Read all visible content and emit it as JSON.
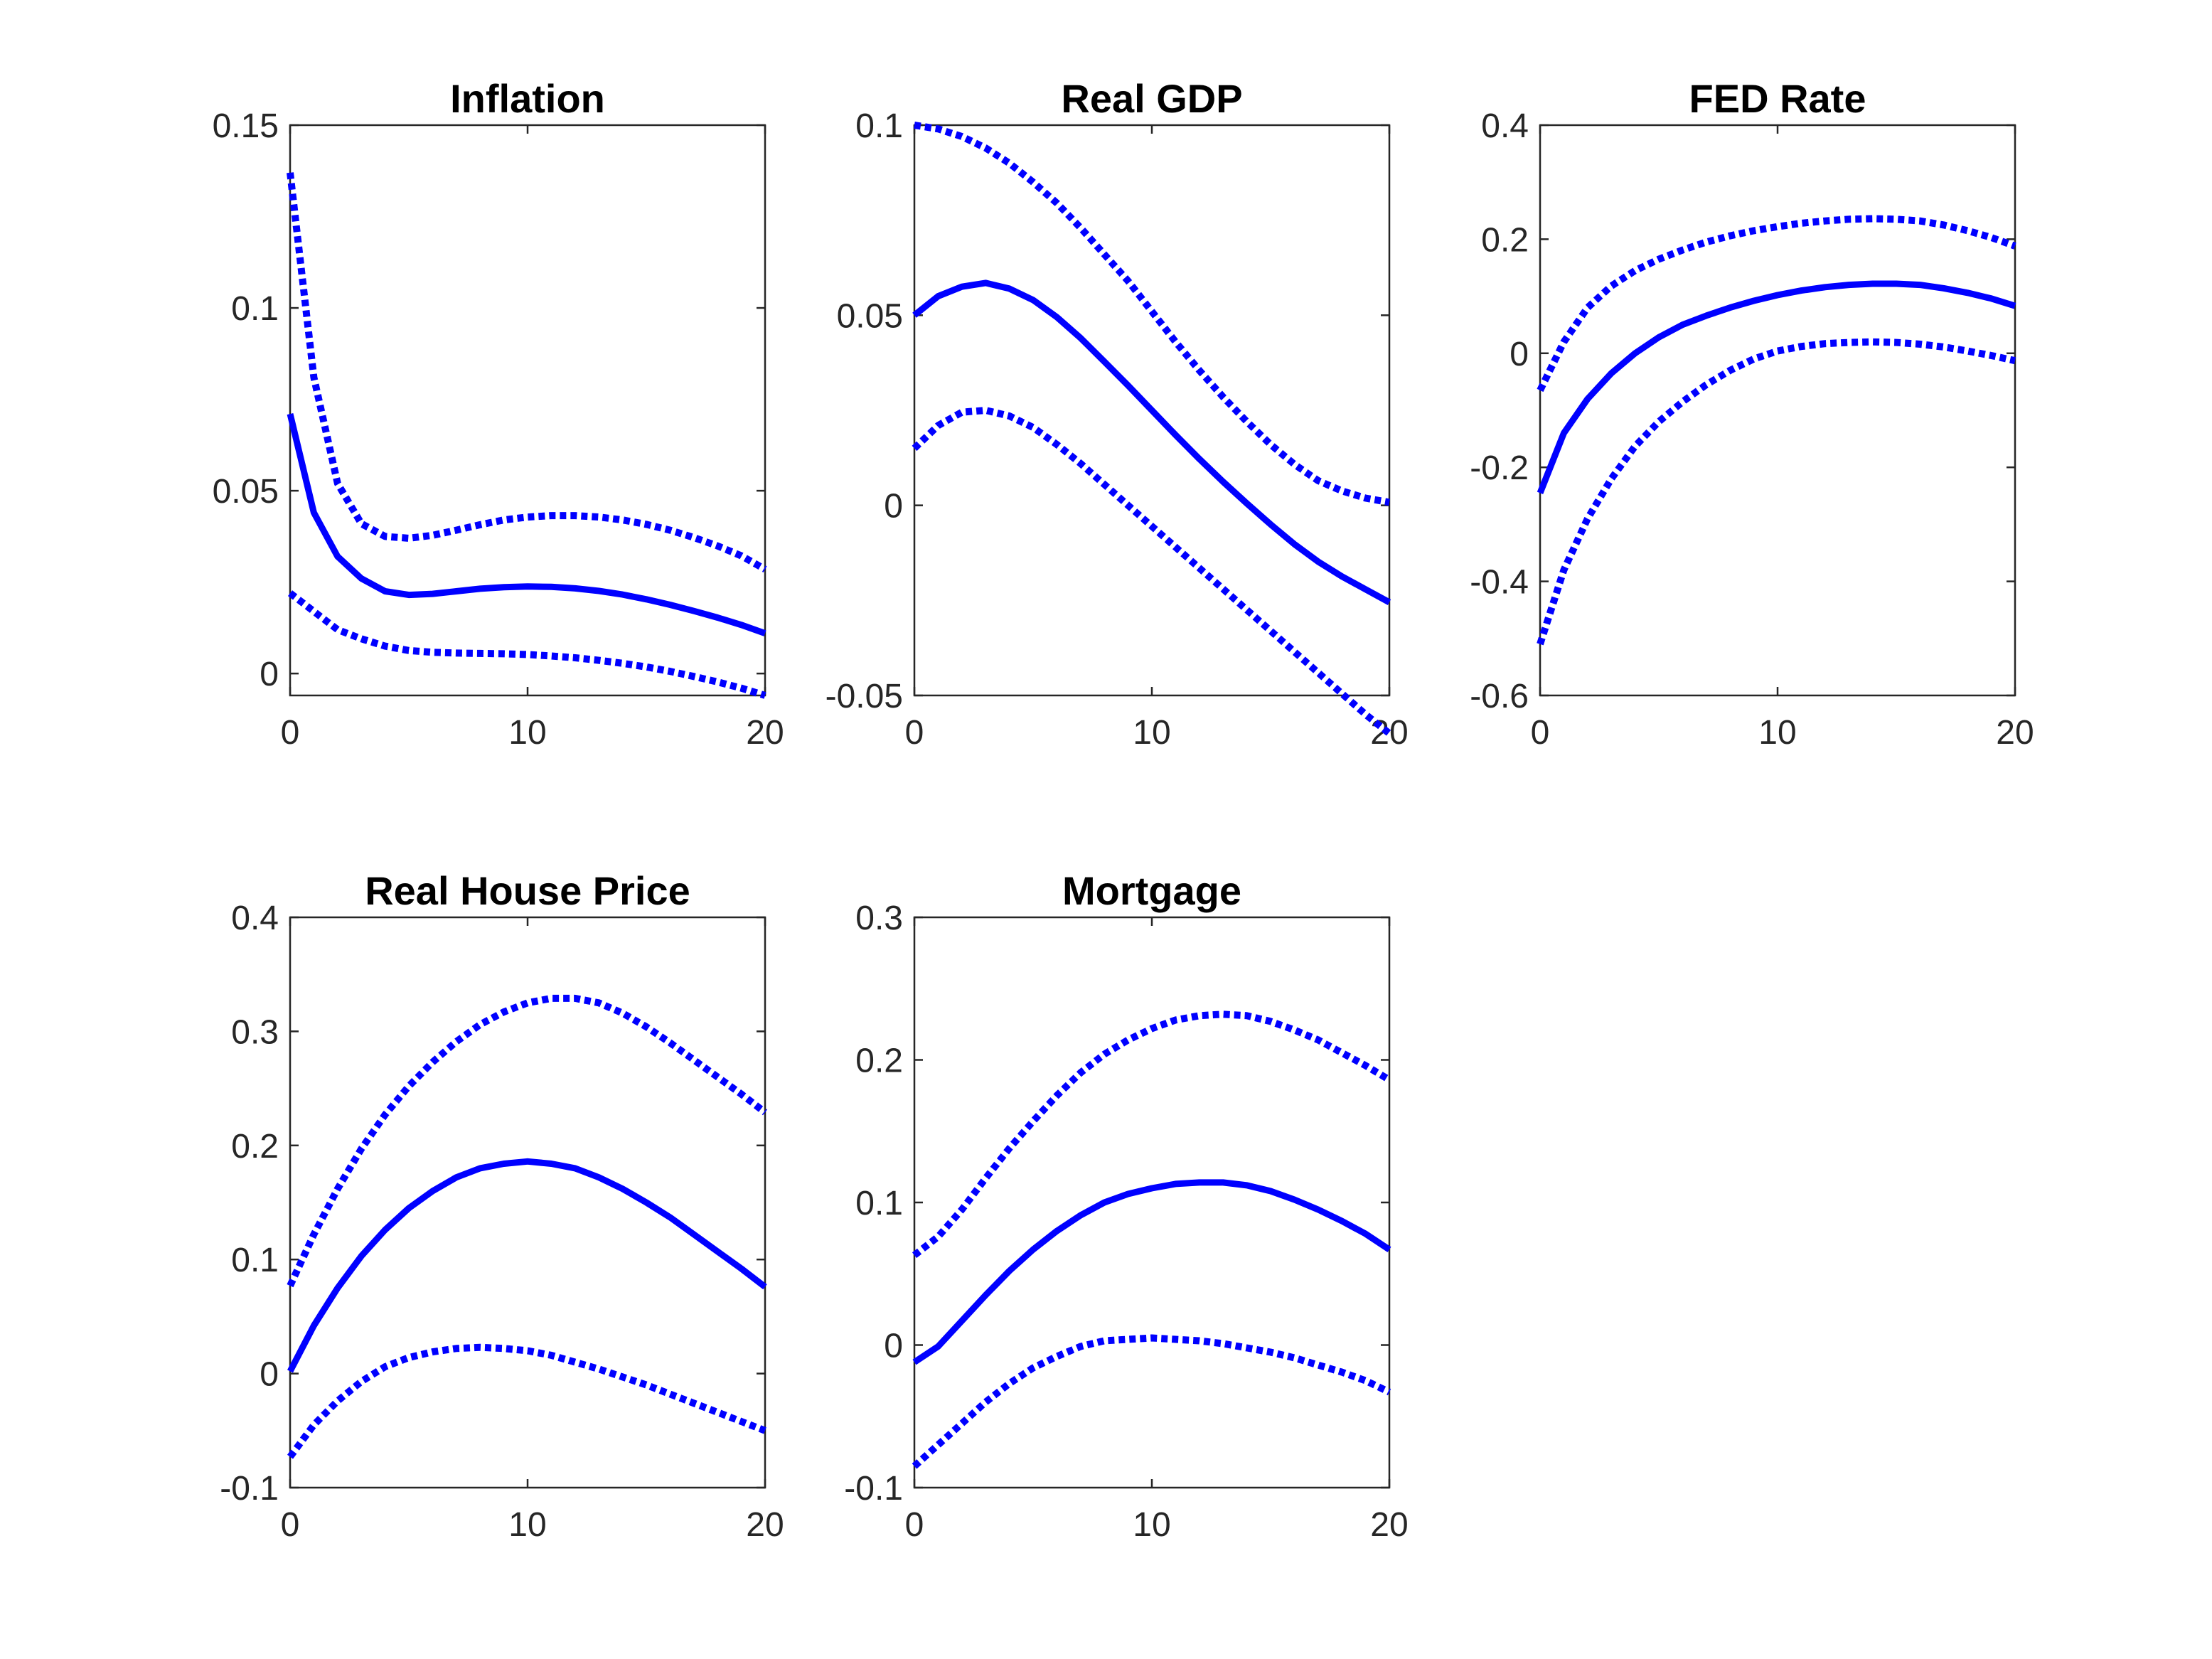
{
  "colors": {
    "line": "#0000ff",
    "axes": "#262626",
    "background": "#ffffff"
  },
  "chart_data": [
    {
      "type": "line",
      "title": "Inflation",
      "xlabel": "",
      "ylabel": "",
      "xlim": [
        0,
        20
      ],
      "ylim": [
        -0.006,
        0.15
      ],
      "xticks": [
        0,
        10,
        20
      ],
      "xtick_labels": [
        "0",
        "10",
        "20"
      ],
      "yticks": [
        0,
        0.05,
        0.1,
        0.15
      ],
      "ytick_labels": [
        "0",
        "0.05",
        "0.1",
        "0.15"
      ],
      "x": [
        0,
        1,
        2,
        3,
        4,
        5,
        6,
        7,
        8,
        9,
        10,
        11,
        12,
        13,
        14,
        15,
        16,
        17,
        18,
        19,
        20
      ],
      "series": [
        {
          "style": "solid",
          "values": [
            0.071,
            0.044,
            0.032,
            0.026,
            0.0225,
            0.0215,
            0.0218,
            0.0225,
            0.0232,
            0.0236,
            0.0238,
            0.0237,
            0.0233,
            0.0226,
            0.0216,
            0.0203,
            0.0188,
            0.0171,
            0.0153,
            0.0133,
            0.011
          ]
        },
        {
          "style": "dotted",
          "values": [
            0.137,
            0.081,
            0.052,
            0.041,
            0.0375,
            0.037,
            0.0378,
            0.0392,
            0.0407,
            0.042,
            0.0428,
            0.0432,
            0.0432,
            0.0428,
            0.042,
            0.0408,
            0.0392,
            0.0372,
            0.0349,
            0.0322,
            0.0285
          ]
        },
        {
          "style": "dotted",
          "values": [
            0.022,
            0.017,
            0.012,
            0.0095,
            0.0075,
            0.0063,
            0.0058,
            0.0056,
            0.0055,
            0.0054,
            0.0052,
            0.0048,
            0.0043,
            0.0036,
            0.0028,
            0.0018,
            0.0006,
            -0.0008,
            -0.0023,
            -0.004,
            -0.006
          ]
        }
      ]
    },
    {
      "type": "line",
      "title": "Real GDP",
      "xlabel": "",
      "ylabel": "",
      "xlim": [
        0,
        20
      ],
      "ylim": [
        -0.05,
        0.1
      ],
      "xticks": [
        0,
        10,
        20
      ],
      "xtick_labels": [
        "0",
        "10",
        "20"
      ],
      "yticks": [
        -0.05,
        0,
        0.05,
        0.1
      ],
      "ytick_labels": [
        "-0.05",
        "0",
        "0.05",
        "0.1"
      ],
      "x": [
        0,
        1,
        2,
        3,
        4,
        5,
        6,
        7,
        8,
        9,
        10,
        11,
        12,
        13,
        14,
        15,
        16,
        17,
        18,
        19,
        20
      ],
      "series": [
        {
          "style": "solid",
          "values": [
            0.05,
            0.055,
            0.0575,
            0.0585,
            0.057,
            0.054,
            0.0495,
            0.044,
            0.0378,
            0.0315,
            0.025,
            0.0185,
            0.0122,
            0.0062,
            0.0005,
            -0.005,
            -0.0102,
            -0.0148,
            -0.0187,
            -0.0221,
            -0.0255
          ]
        },
        {
          "style": "dotted",
          "values": [
            0.1,
            0.099,
            0.097,
            0.094,
            0.09,
            0.085,
            0.0795,
            0.073,
            0.066,
            0.059,
            0.051,
            0.043,
            0.0355,
            0.0285,
            0.022,
            0.016,
            0.0108,
            0.0065,
            0.0038,
            0.0019,
            0.0008
          ]
        },
        {
          "style": "dotted",
          "values": [
            0.015,
            0.021,
            0.0245,
            0.025,
            0.0235,
            0.0205,
            0.016,
            0.011,
            0.0055,
            0,
            -0.0055,
            -0.011,
            -0.0165,
            -0.022,
            -0.0275,
            -0.033,
            -0.0385,
            -0.044,
            -0.0495,
            -0.055,
            -0.06
          ]
        }
      ]
    },
    {
      "type": "line",
      "title": "FED Rate",
      "xlabel": "",
      "ylabel": "",
      "xlim": [
        0,
        20
      ],
      "ylim": [
        -0.6,
        0.4
      ],
      "xticks": [
        0,
        10,
        20
      ],
      "xtick_labels": [
        "0",
        "10",
        "20"
      ],
      "yticks": [
        -0.6,
        -0.4,
        -0.2,
        0,
        0.2,
        0.4
      ],
      "ytick_labels": [
        "-0.6",
        "-0.4",
        "-0.2",
        "0",
        "0.2",
        "0.4"
      ],
      "x": [
        0,
        1,
        2,
        3,
        4,
        5,
        6,
        7,
        8,
        9,
        10,
        11,
        12,
        13,
        14,
        15,
        16,
        17,
        18,
        19,
        20
      ],
      "series": [
        {
          "style": "solid",
          "values": [
            -0.245,
            -0.14,
            -0.08,
            -0.035,
            0,
            0.028,
            0.05,
            0.066,
            0.08,
            0.092,
            0.102,
            0.11,
            0.116,
            0.12,
            0.122,
            0.122,
            0.12,
            0.114,
            0.106,
            0.096,
            0.083
          ]
        },
        {
          "style": "dotted",
          "values": [
            -0.065,
            0.02,
            0.08,
            0.118,
            0.145,
            0.165,
            0.181,
            0.195,
            0.206,
            0.215,
            0.222,
            0.228,
            0.232,
            0.235,
            0.236,
            0.235,
            0.232,
            0.225,
            0.215,
            0.203,
            0.188
          ]
        },
        {
          "style": "dotted",
          "values": [
            -0.51,
            -0.38,
            -0.29,
            -0.22,
            -0.163,
            -0.12,
            -0.085,
            -0.055,
            -0.03,
            -0.01,
            0.004,
            0.012,
            0.017,
            0.019,
            0.02,
            0.019,
            0.016,
            0.011,
            0.004,
            -0.004,
            -0.013
          ]
        }
      ]
    },
    {
      "type": "line",
      "title": "Real House Price",
      "xlabel": "",
      "ylabel": "",
      "xlim": [
        0,
        20
      ],
      "ylim": [
        -0.1,
        0.4
      ],
      "xticks": [
        0,
        10,
        20
      ],
      "xtick_labels": [
        "0",
        "10",
        "20"
      ],
      "yticks": [
        -0.1,
        0,
        0.1,
        0.2,
        0.3,
        0.4
      ],
      "ytick_labels": [
        "-0.1",
        "0",
        "0.1",
        "0.2",
        "0.3",
        "0.4"
      ],
      "x": [
        0,
        1,
        2,
        3,
        4,
        5,
        6,
        7,
        8,
        9,
        10,
        11,
        12,
        13,
        14,
        15,
        16,
        17,
        18,
        19,
        20
      ],
      "series": [
        {
          "style": "solid",
          "values": [
            0.002,
            0.042,
            0.075,
            0.103,
            0.126,
            0.145,
            0.16,
            0.172,
            0.18,
            0.184,
            0.186,
            0.184,
            0.18,
            0.172,
            0.162,
            0.15,
            0.137,
            0.122,
            0.107,
            0.092,
            0.076
          ]
        },
        {
          "style": "dotted",
          "values": [
            0.077,
            0.122,
            0.162,
            0.197,
            0.227,
            0.252,
            0.273,
            0.291,
            0.306,
            0.317,
            0.325,
            0.329,
            0.329,
            0.325,
            0.316,
            0.304,
            0.29,
            0.275,
            0.26,
            0.245,
            0.229
          ]
        },
        {
          "style": "dotted",
          "values": [
            -0.073,
            -0.045,
            -0.024,
            -0.007,
            0.006,
            0.014,
            0.019,
            0.022,
            0.023,
            0.022,
            0.02,
            0.016,
            0.01,
            0.004,
            -0.003,
            -0.01,
            -0.018,
            -0.026,
            -0.034,
            -0.042,
            -0.05
          ]
        }
      ]
    },
    {
      "type": "line",
      "title": "Mortgage",
      "xlabel": "",
      "ylabel": "",
      "xlim": [
        0,
        20
      ],
      "ylim": [
        -0.1,
        0.3
      ],
      "xticks": [
        0,
        10,
        20
      ],
      "xtick_labels": [
        "0",
        "10",
        "20"
      ],
      "yticks": [
        -0.1,
        0,
        0.1,
        0.2,
        0.3
      ],
      "ytick_labels": [
        "-0.1",
        "0",
        "0.1",
        "0.2",
        "0.3"
      ],
      "x": [
        0,
        1,
        2,
        3,
        4,
        5,
        6,
        7,
        8,
        9,
        10,
        11,
        12,
        13,
        14,
        15,
        16,
        17,
        18,
        19,
        20
      ],
      "series": [
        {
          "style": "solid",
          "values": [
            -0.012,
            -0.001,
            0.017,
            0.035,
            0.052,
            0.067,
            0.08,
            0.091,
            0.1,
            0.106,
            0.11,
            0.113,
            0.114,
            0.114,
            0.112,
            0.108,
            0.102,
            0.095,
            0.087,
            0.078,
            0.067
          ]
        },
        {
          "style": "dotted",
          "values": [
            0.063,
            0.076,
            0.095,
            0.117,
            0.138,
            0.157,
            0.175,
            0.191,
            0.204,
            0.214,
            0.222,
            0.228,
            0.231,
            0.232,
            0.231,
            0.227,
            0.221,
            0.214,
            0.205,
            0.196,
            0.186
          ]
        },
        {
          "style": "dotted",
          "values": [
            -0.085,
            -0.07,
            -0.055,
            -0.04,
            -0.027,
            -0.016,
            -0.008,
            -0.001,
            0.003,
            0.004,
            0.005,
            0.004,
            0.003,
            0.001,
            -0.002,
            -0.005,
            -0.009,
            -0.014,
            -0.019,
            -0.025,
            -0.033
          ]
        }
      ]
    }
  ]
}
